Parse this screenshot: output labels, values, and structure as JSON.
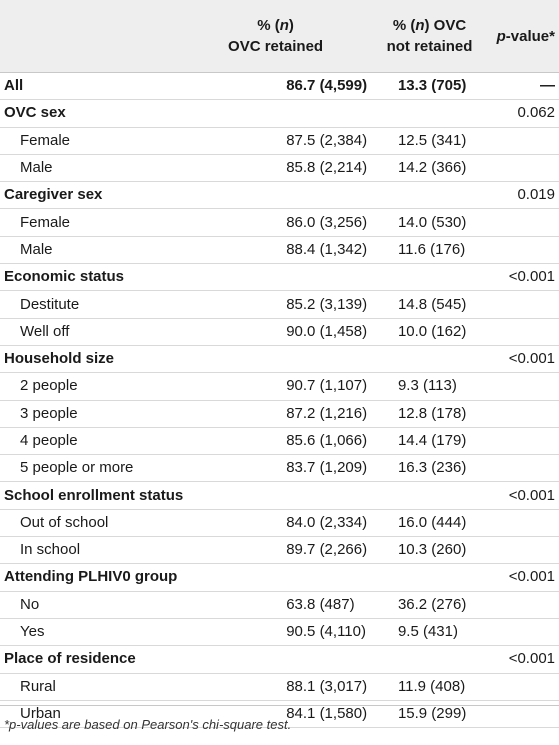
{
  "header": {
    "col1_line1": "% (n)",
    "col1_line2": "OVC retained",
    "col2_line1": "% (n) OVC",
    "col2_line2": "not retained",
    "col3": "p-value*"
  },
  "rows": [
    {
      "kind": "all",
      "label": "All",
      "retained": "86.7 (4,599)",
      "not_retained": "13.3 (705)",
      "p": "—"
    },
    {
      "kind": "group",
      "label": "OVC sex",
      "retained": "",
      "not_retained": "",
      "p": "0.062"
    },
    {
      "kind": "sub",
      "label": "Female",
      "retained": "87.5 (2,384)",
      "not_retained": "12.5 (341)",
      "p": ""
    },
    {
      "kind": "sub",
      "label": "Male",
      "retained": "85.8 (2,214)",
      "not_retained": "14.2 (366)",
      "p": ""
    },
    {
      "kind": "group",
      "label": "Caregiver sex",
      "retained": "",
      "not_retained": "",
      "p": "0.019"
    },
    {
      "kind": "sub",
      "label": "Female",
      "retained": "86.0 (3,256)",
      "not_retained": "14.0 (530)",
      "p": ""
    },
    {
      "kind": "sub",
      "label": "Male",
      "retained": "88.4 (1,342)",
      "not_retained": "11.6 (176)",
      "p": ""
    },
    {
      "kind": "group",
      "label": "Economic status",
      "retained": "",
      "not_retained": "",
      "p": "<0.001"
    },
    {
      "kind": "sub",
      "label": "Destitute",
      "retained": "85.2 (3,139)",
      "not_retained": "14.8 (545)",
      "p": ""
    },
    {
      "kind": "sub",
      "label": "Well off",
      "retained": "90.0 (1,458)",
      "not_retained": "10.0 (162)",
      "p": ""
    },
    {
      "kind": "group",
      "label": "Household size",
      "retained": "",
      "not_retained": "",
      "p": "<0.001"
    },
    {
      "kind": "sub",
      "label": "2 people",
      "retained": "90.7 (1,107)",
      "not_retained": "9.3 (113)",
      "p": ""
    },
    {
      "kind": "sub",
      "label": "3 people",
      "retained": "87.2 (1,216)",
      "not_retained": "12.8 (178)",
      "p": ""
    },
    {
      "kind": "sub",
      "label": "4 people",
      "retained": "85.6 (1,066)",
      "not_retained": "14.4 (179)",
      "p": ""
    },
    {
      "kind": "sub",
      "label": "5 people or more",
      "retained": "83.7 (1,209)",
      "not_retained": "16.3 (236)",
      "p": ""
    },
    {
      "kind": "group",
      "label": "School enrollment status",
      "retained": "",
      "not_retained": "",
      "p": "<0.001"
    },
    {
      "kind": "sub",
      "label": "Out of school",
      "retained": "84.0 (2,334)",
      "not_retained": "16.0 (444)",
      "p": ""
    },
    {
      "kind": "sub",
      "label": "In school",
      "retained": "89.7 (2,266)",
      "not_retained": "10.3 (260)",
      "p": ""
    },
    {
      "kind": "group",
      "label": "Attending PLHIV0 group",
      "retained": "",
      "not_retained": "",
      "p": "<0.001"
    },
    {
      "kind": "sub",
      "label": "No",
      "retained": "63.8 (487)",
      "not_retained": "36.2 (276)",
      "p": ""
    },
    {
      "kind": "sub",
      "label": "Yes",
      "retained": "90.5 (4,110)",
      "not_retained": "9.5 (431)",
      "p": ""
    },
    {
      "kind": "group",
      "label": "Place of residence",
      "retained": "",
      "not_retained": "",
      "p": "<0.001"
    },
    {
      "kind": "sub",
      "label": "Rural",
      "retained": "88.1 (3,017)",
      "not_retained": "11.9 (408)",
      "p": ""
    },
    {
      "kind": "sub",
      "label": "Urban",
      "retained": "84.1 (1,580)",
      "not_retained": "15.9 (299)",
      "p": ""
    }
  ],
  "footnote": "*p-values are based on Pearson's chi-square test."
}
